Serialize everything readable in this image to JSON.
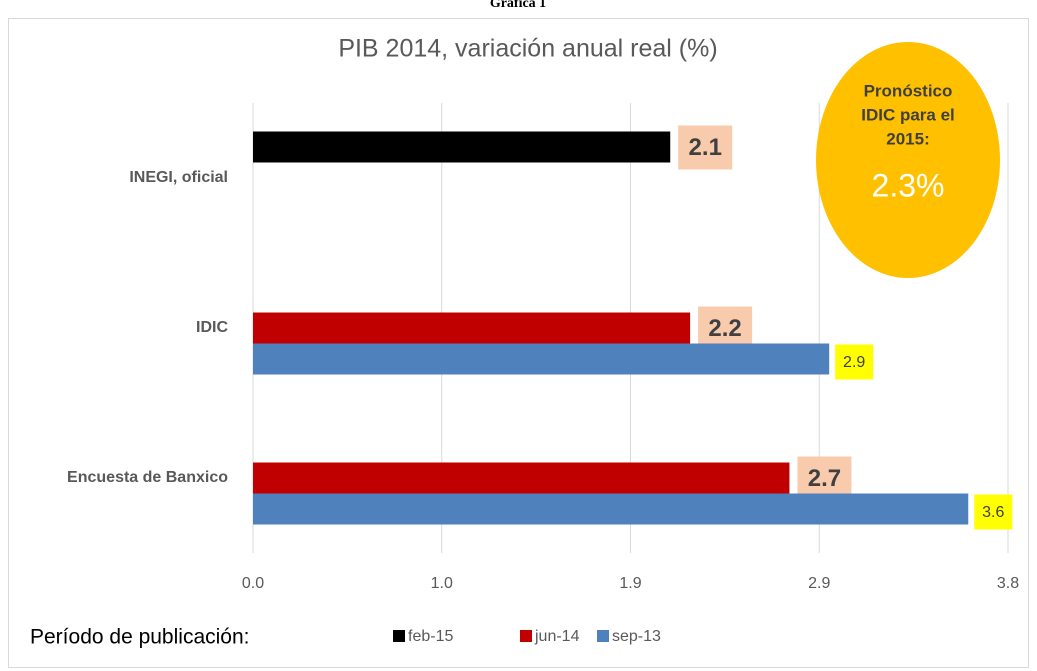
{
  "caption": "Gráfica 1",
  "chart_data": {
    "type": "hbar",
    "title": "PIB 2014, variación anual real (%)",
    "categories": [
      "INEGI, oficial",
      "IDIC",
      "Encuesta de Banxico"
    ],
    "series": [
      {
        "name": "feb-15",
        "color": "#000000",
        "label_background": "#f8cbad",
        "values": [
          2.1,
          null,
          null
        ]
      },
      {
        "name": "jun-14",
        "color": "#c00000",
        "label_background": "#f8cbad",
        "values": [
          null,
          2.2,
          2.7
        ]
      },
      {
        "name": "sep-13",
        "color": "#4f81bd",
        "label_background": "#ffff00",
        "values": [
          null,
          2.9,
          3.6
        ]
      }
    ],
    "xlim": [
      0,
      3.8
    ],
    "xticks": [
      {
        "value": 0,
        "label": "0.0"
      },
      {
        "value": 0.95,
        "label": "1.0"
      },
      1.9,
      {
        "value": 2.85,
        "label": "2.9"
      },
      3.8
    ],
    "grid": true,
    "legend_title": "Período de publicación:",
    "legend_position": "bottom",
    "annotation": {
      "lines": [
        "Pronóstico",
        "IDIC para el",
        "2015:"
      ],
      "value": "2.3%",
      "color": "#ffc000"
    }
  }
}
